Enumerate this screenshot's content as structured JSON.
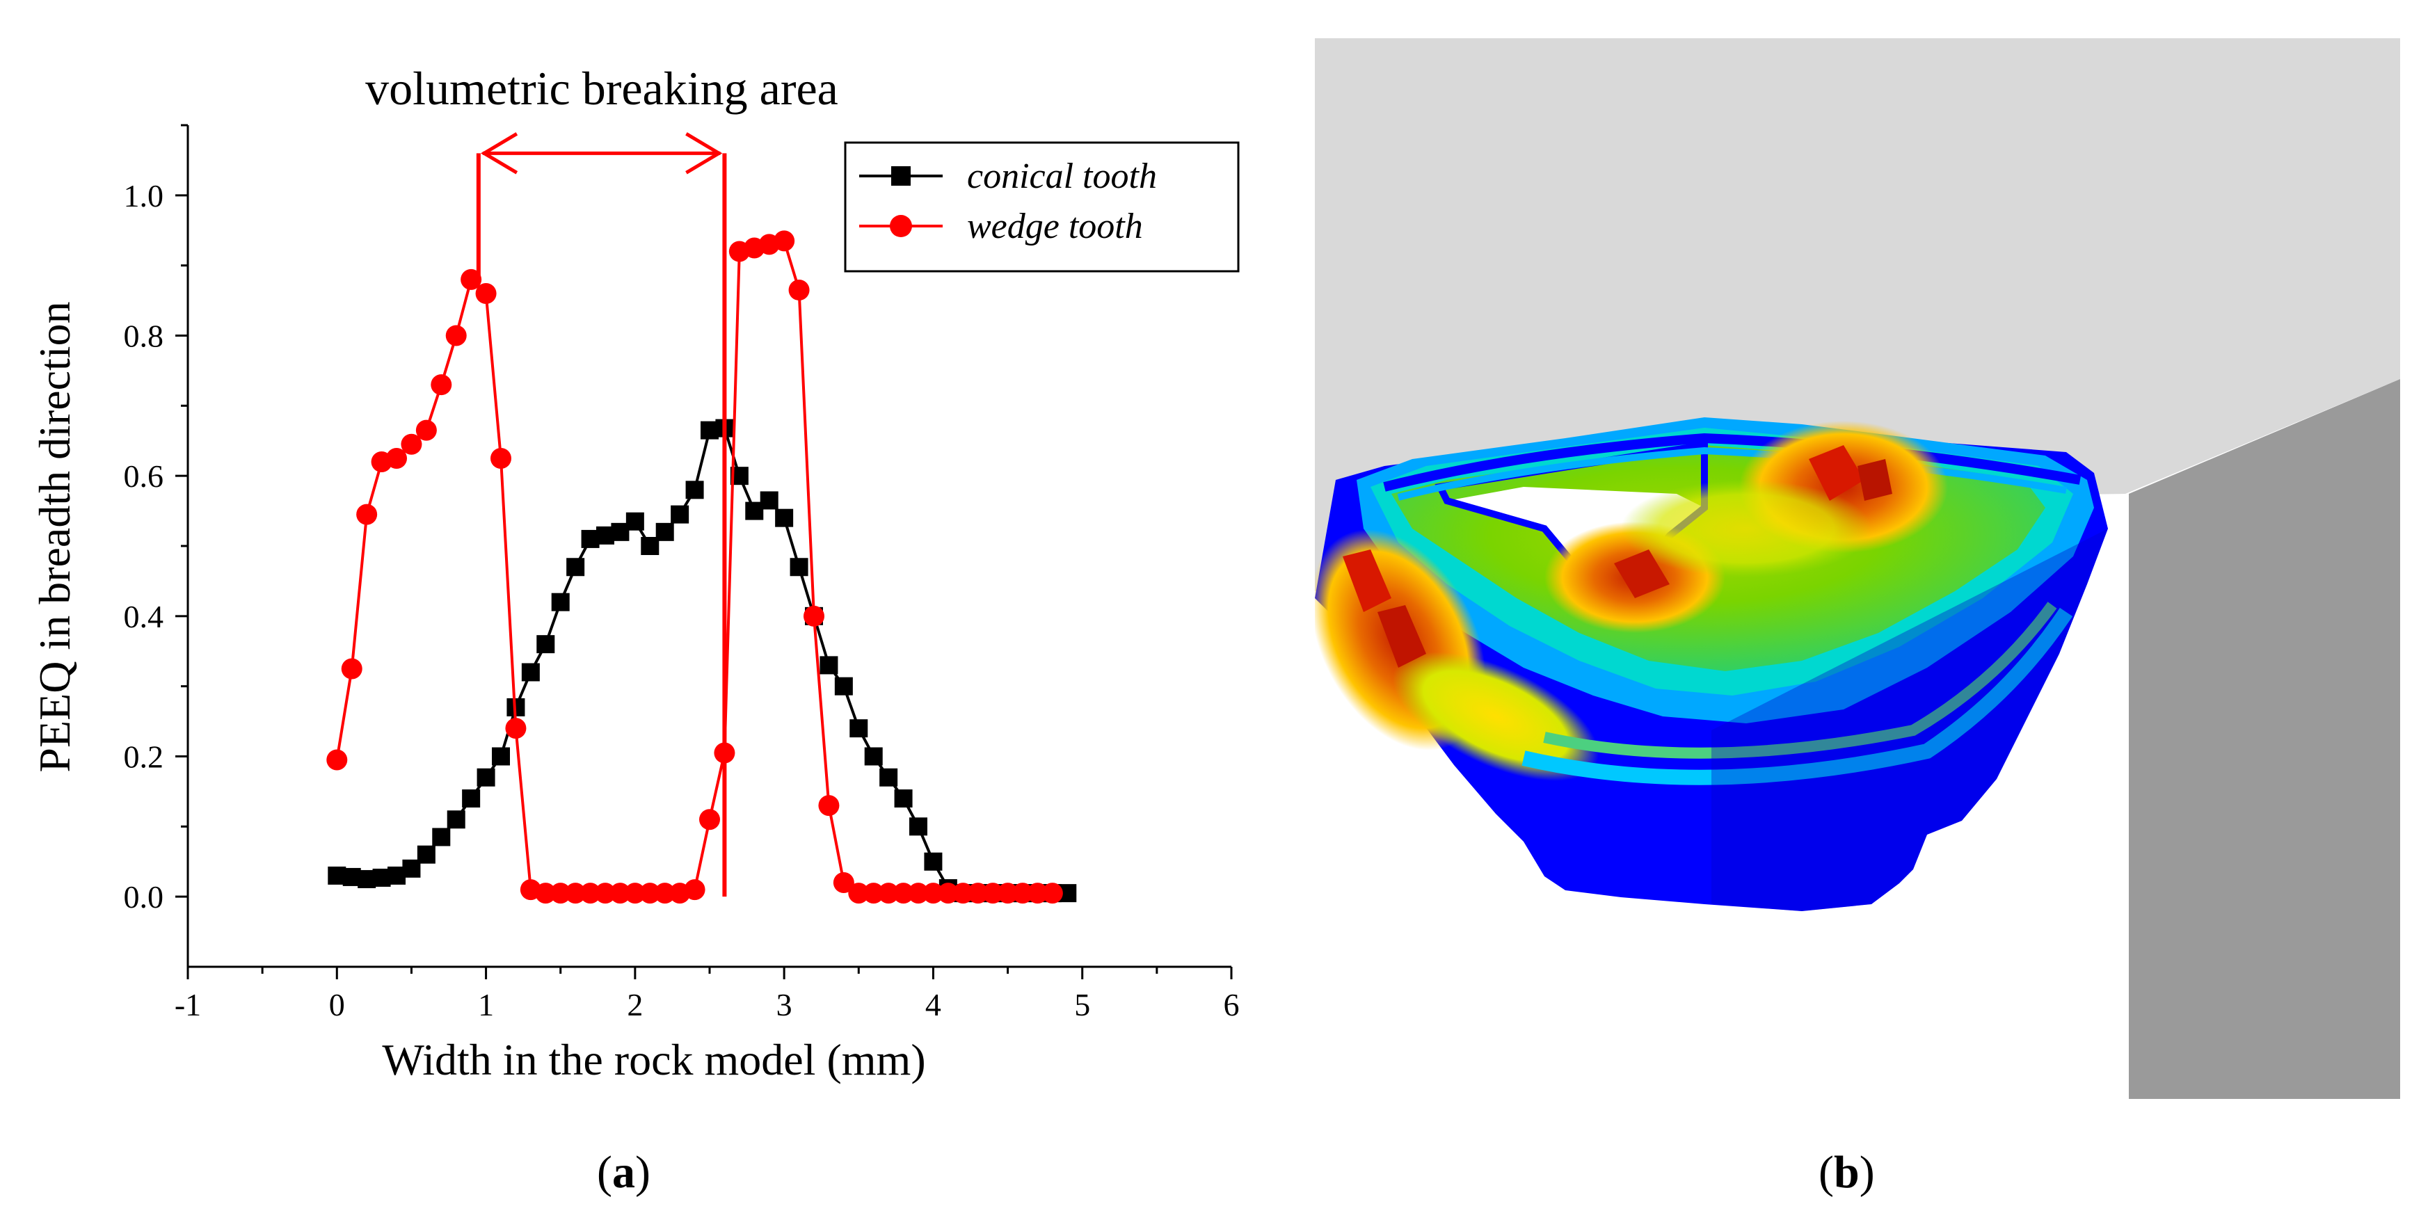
{
  "panel_a": {
    "caption_letter": "a"
  },
  "panel_b": {
    "caption_letter": "b",
    "colors": {
      "background_light": "#d9d9d9",
      "background_dark": "#9a9a9a",
      "contour_blue": "#0000ff",
      "contour_cyan": "#00c8ff",
      "contour_green": "#5cd000",
      "contour_yellow": "#ffd000",
      "contour_red": "#d81800"
    }
  },
  "chart_data": {
    "type": "line",
    "title": "volumetric breaking area",
    "xlabel": "Width in the rock model (mm)",
    "ylabel": "PEEQ in breadth direction",
    "xlim": [
      -1,
      6
    ],
    "ylim": [
      -0.1,
      1.1
    ],
    "xticks": [
      "-1",
      "0",
      "1",
      "2",
      "3",
      "4",
      "5",
      "6"
    ],
    "yticks": [
      "0.0",
      "0.2",
      "0.4",
      "0.6",
      "0.8",
      "1.0"
    ],
    "legend_position": "top-right",
    "annotation": {
      "text": "volumetric breaking area",
      "x_start": 0.95,
      "x_end": 2.6,
      "y": 1.06
    },
    "series": [
      {
        "name": "conical tooth",
        "color": "#000000",
        "marker": "square",
        "x": [
          0,
          0.1,
          0.2,
          0.3,
          0.4,
          0.5,
          0.6,
          0.7,
          0.8,
          0.9,
          1.0,
          1.1,
          1.2,
          1.3,
          1.4,
          1.5,
          1.6,
          1.7,
          1.8,
          1.9,
          2.0,
          2.1,
          2.2,
          2.3,
          2.4,
          2.5,
          2.6,
          2.7,
          2.8,
          2.9,
          3.0,
          3.1,
          3.2,
          3.3,
          3.4,
          3.5,
          3.6,
          3.7,
          3.8,
          3.9,
          4.0,
          4.1,
          4.2,
          4.3,
          4.4,
          4.5,
          4.6,
          4.7,
          4.8,
          4.9
        ],
        "values": [
          0.03,
          0.028,
          0.025,
          0.027,
          0.03,
          0.04,
          0.06,
          0.085,
          0.11,
          0.14,
          0.17,
          0.2,
          0.27,
          0.32,
          0.36,
          0.42,
          0.47,
          0.51,
          0.515,
          0.52,
          0.535,
          0.5,
          0.52,
          0.545,
          0.58,
          0.665,
          0.668,
          0.6,
          0.55,
          0.565,
          0.54,
          0.47,
          0.4,
          0.33,
          0.3,
          0.24,
          0.2,
          0.17,
          0.14,
          0.1,
          0.05,
          0.012,
          0.005,
          0.005,
          0.005,
          0.005,
          0.005,
          0.005,
          0.005,
          0.005
        ]
      },
      {
        "name": "wedge tooth",
        "color": "#ff0000",
        "marker": "circle",
        "x": [
          0,
          0.1,
          0.2,
          0.3,
          0.4,
          0.5,
          0.6,
          0.7,
          0.8,
          0.9,
          1.0,
          1.1,
          1.2,
          1.3,
          1.4,
          1.5,
          1.6,
          1.7,
          1.8,
          1.9,
          2.0,
          2.1,
          2.2,
          2.3,
          2.4,
          2.5,
          2.6,
          2.7,
          2.8,
          2.9,
          3.0,
          3.1,
          3.2,
          3.3,
          3.4,
          3.5,
          3.6,
          3.7,
          3.8,
          3.9,
          4.0,
          4.1,
          4.2,
          4.3,
          4.4,
          4.5,
          4.6,
          4.7,
          4.8
        ],
        "values": [
          0.195,
          0.325,
          0.545,
          0.62,
          0.625,
          0.645,
          0.665,
          0.73,
          0.8,
          0.88,
          0.86,
          0.625,
          0.24,
          0.01,
          0.005,
          0.005,
          0.005,
          0.005,
          0.005,
          0.005,
          0.005,
          0.005,
          0.005,
          0.005,
          0.01,
          0.11,
          0.205,
          0.92,
          0.925,
          0.93,
          0.935,
          0.865,
          0.4,
          0.13,
          0.02,
          0.005,
          0.005,
          0.005,
          0.005,
          0.005,
          0.005,
          0.005,
          0.005,
          0.005,
          0.005,
          0.005,
          0.005,
          0.005,
          0.005
        ]
      }
    ]
  }
}
